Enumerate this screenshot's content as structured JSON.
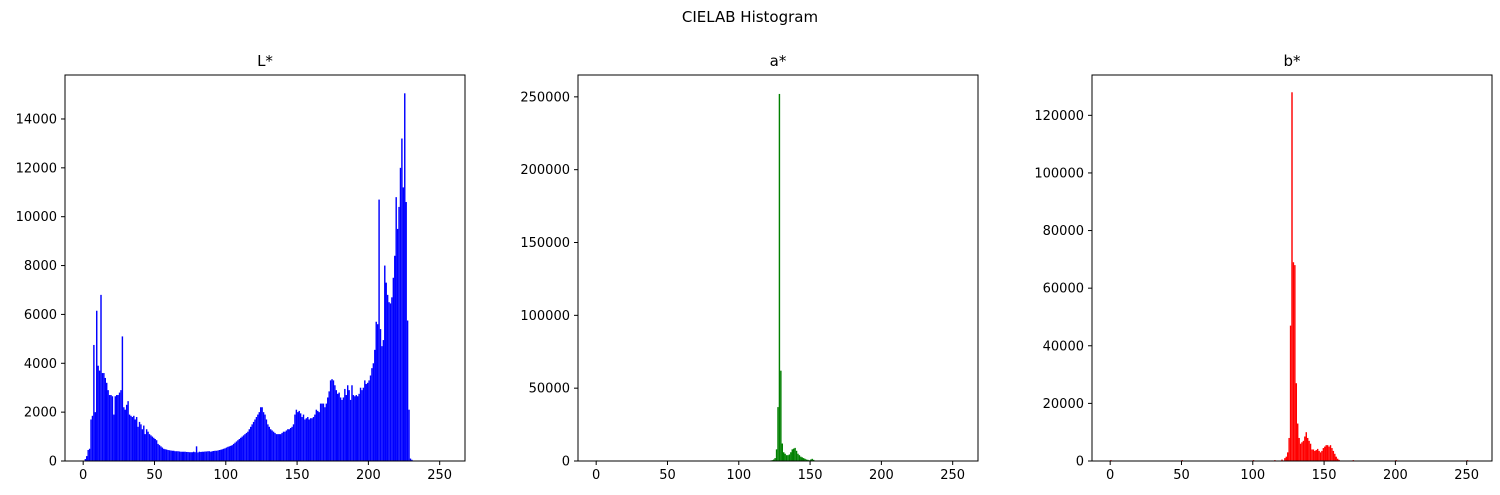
{
  "figure": {
    "title": "CIELAB Histogram"
  },
  "chart_data": [
    {
      "type": "bar",
      "title": "L*",
      "color": "#0000ff",
      "xlim": [
        -12.75,
        267.75
      ],
      "ylim": [
        0,
        15800
      ],
      "xticks": [
        0,
        50,
        100,
        150,
        200,
        250
      ],
      "yticks": [
        0,
        2000,
        4000,
        6000,
        8000,
        10000,
        12000,
        14000
      ],
      "bins": [
        [
          1,
          80
        ],
        [
          2,
          200
        ],
        [
          3,
          450
        ],
        [
          4,
          500
        ],
        [
          5,
          1700
        ],
        [
          6,
          1850
        ],
        [
          7,
          4750
        ],
        [
          8,
          2000
        ],
        [
          9,
          6150
        ],
        [
          10,
          3900
        ],
        [
          11,
          3700
        ],
        [
          12,
          6800
        ],
        [
          13,
          3600
        ],
        [
          14,
          3600
        ],
        [
          15,
          3400
        ],
        [
          16,
          3200
        ],
        [
          17,
          2900
        ],
        [
          18,
          2700
        ],
        [
          19,
          2700
        ],
        [
          20,
          2650
        ],
        [
          21,
          1900
        ],
        [
          22,
          2650
        ],
        [
          23,
          2700
        ],
        [
          24,
          2700
        ],
        [
          25,
          2800
        ],
        [
          26,
          2900
        ],
        [
          27,
          5100
        ],
        [
          28,
          2200
        ],
        [
          29,
          2100
        ],
        [
          30,
          2300
        ],
        [
          31,
          2450
        ],
        [
          32,
          1900
        ],
        [
          33,
          1850
        ],
        [
          34,
          1800
        ],
        [
          35,
          1850
        ],
        [
          36,
          1700
        ],
        [
          37,
          1800
        ],
        [
          38,
          1400
        ],
        [
          39,
          1600
        ],
        [
          40,
          1500
        ],
        [
          41,
          1300
        ],
        [
          42,
          1450
        ],
        [
          43,
          1100
        ],
        [
          44,
          1300
        ],
        [
          45,
          1200
        ],
        [
          46,
          1100
        ],
        [
          47,
          1050
        ],
        [
          48,
          1000
        ],
        [
          49,
          950
        ],
        [
          50,
          900
        ],
        [
          51,
          850
        ],
        [
          52,
          700
        ],
        [
          53,
          650
        ],
        [
          54,
          600
        ],
        [
          55,
          550
        ],
        [
          56,
          500
        ],
        [
          57,
          480
        ],
        [
          58,
          470
        ],
        [
          59,
          450
        ],
        [
          60,
          440
        ],
        [
          61,
          430
        ],
        [
          62,
          420
        ],
        [
          63,
          420
        ],
        [
          64,
          400
        ],
        [
          65,
          400
        ],
        [
          66,
          400
        ],
        [
          67,
          390
        ],
        [
          68,
          380
        ],
        [
          69,
          380
        ],
        [
          70,
          380
        ],
        [
          71,
          380
        ],
        [
          72,
          370
        ],
        [
          73,
          370
        ],
        [
          74,
          360
        ],
        [
          75,
          360
        ],
        [
          76,
          360
        ],
        [
          77,
          380
        ],
        [
          78,
          360
        ],
        [
          79,
          600
        ],
        [
          80,
          350
        ],
        [
          81,
          380
        ],
        [
          82,
          370
        ],
        [
          83,
          380
        ],
        [
          84,
          380
        ],
        [
          85,
          390
        ],
        [
          86,
          390
        ],
        [
          87,
          400
        ],
        [
          88,
          400
        ],
        [
          89,
          380
        ],
        [
          90,
          400
        ],
        [
          91,
          410
        ],
        [
          92,
          420
        ],
        [
          93,
          420
        ],
        [
          94,
          430
        ],
        [
          95,
          450
        ],
        [
          96,
          460
        ],
        [
          97,
          480
        ],
        [
          98,
          500
        ],
        [
          99,
          520
        ],
        [
          100,
          550
        ],
        [
          101,
          580
        ],
        [
          102,
          600
        ],
        [
          103,
          620
        ],
        [
          104,
          650
        ],
        [
          105,
          700
        ],
        [
          106,
          750
        ],
        [
          107,
          800
        ],
        [
          108,
          850
        ],
        [
          109,
          900
        ],
        [
          110,
          950
        ],
        [
          111,
          1000
        ],
        [
          112,
          1050
        ],
        [
          113,
          1100
        ],
        [
          114,
          1150
        ],
        [
          115,
          1200
        ],
        [
          116,
          1300
        ],
        [
          117,
          1400
        ],
        [
          118,
          1500
        ],
        [
          119,
          1600
        ],
        [
          120,
          1700
        ],
        [
          121,
          1800
        ],
        [
          122,
          1900
        ],
        [
          123,
          2000
        ],
        [
          124,
          2200
        ],
        [
          125,
          2200
        ],
        [
          126,
          2000
        ],
        [
          127,
          1900
        ],
        [
          128,
          1700
        ],
        [
          129,
          1500
        ],
        [
          130,
          1400
        ],
        [
          131,
          1300
        ],
        [
          132,
          1250
        ],
        [
          133,
          1200
        ],
        [
          134,
          1150
        ],
        [
          135,
          1100
        ],
        [
          136,
          1100
        ],
        [
          137,
          1100
        ],
        [
          138,
          1100
        ],
        [
          139,
          1150
        ],
        [
          140,
          1200
        ],
        [
          141,
          1200
        ],
        [
          142,
          1250
        ],
        [
          143,
          1300
        ],
        [
          144,
          1300
        ],
        [
          145,
          1350
        ],
        [
          146,
          1400
        ],
        [
          147,
          1500
        ],
        [
          148,
          1900
        ],
        [
          149,
          2100
        ],
        [
          150,
          2000
        ],
        [
          151,
          2050
        ],
        [
          152,
          1950
        ],
        [
          153,
          1800
        ],
        [
          154,
          1900
        ],
        [
          155,
          1700
        ],
        [
          156,
          1750
        ],
        [
          157,
          1800
        ],
        [
          158,
          1700
        ],
        [
          159,
          1750
        ],
        [
          160,
          1750
        ],
        [
          161,
          1800
        ],
        [
          162,
          1900
        ],
        [
          163,
          2100
        ],
        [
          164,
          2050
        ],
        [
          165,
          2000
        ],
        [
          166,
          2350
        ],
        [
          167,
          2350
        ],
        [
          168,
          2350
        ],
        [
          169,
          2200
        ],
        [
          170,
          2350
        ],
        [
          171,
          2600
        ],
        [
          172,
          2850
        ],
        [
          173,
          3300
        ],
        [
          174,
          3350
        ],
        [
          175,
          3300
        ],
        [
          176,
          3100
        ],
        [
          177,
          2900
        ],
        [
          178,
          2750
        ],
        [
          179,
          2800
        ],
        [
          180,
          2600
        ],
        [
          181,
          2500
        ],
        [
          182,
          2600
        ],
        [
          183,
          2950
        ],
        [
          184,
          2700
        ],
        [
          185,
          3100
        ],
        [
          186,
          2900
        ],
        [
          187,
          2500
        ],
        [
          188,
          3100
        ],
        [
          189,
          2700
        ],
        [
          190,
          2650
        ],
        [
          191,
          2700
        ],
        [
          192,
          2650
        ],
        [
          193,
          2750
        ],
        [
          194,
          3000
        ],
        [
          195,
          2900
        ],
        [
          196,
          3000
        ],
        [
          197,
          3300
        ],
        [
          198,
          3150
        ],
        [
          199,
          3200
        ],
        [
          200,
          3300
        ],
        [
          201,
          3500
        ],
        [
          202,
          3800
        ],
        [
          203,
          4000
        ],
        [
          204,
          4550
        ],
        [
          205,
          5700
        ],
        [
          206,
          5600
        ],
        [
          207,
          10700
        ],
        [
          208,
          5400
        ],
        [
          209,
          4700
        ],
        [
          210,
          4950
        ],
        [
          211,
          8000
        ],
        [
          212,
          7300
        ],
        [
          213,
          6800
        ],
        [
          214,
          6500
        ],
        [
          215,
          6450
        ],
        [
          216,
          6700
        ],
        [
          217,
          7500
        ],
        [
          218,
          8400
        ],
        [
          219,
          10800
        ],
        [
          220,
          9500
        ],
        [
          221,
          10400
        ],
        [
          222,
          12000
        ],
        [
          223,
          13200
        ],
        [
          224,
          11200
        ],
        [
          225,
          15050
        ],
        [
          226,
          10600
        ],
        [
          227,
          5750
        ],
        [
          228,
          2100
        ],
        [
          229,
          100
        ],
        [
          230,
          50
        ]
      ]
    },
    {
      "type": "bar",
      "title": "a*",
      "color": "#008000",
      "xlim": [
        -12.75,
        267.75
      ],
      "ylim": [
        0,
        265000
      ],
      "xticks": [
        0,
        50,
        100,
        150,
        200,
        250
      ],
      "yticks": [
        0,
        50000,
        100000,
        150000,
        200000,
        250000
      ],
      "bins": [
        [
          0,
          400
        ],
        [
          50,
          300
        ],
        [
          100,
          300
        ],
        [
          120,
          300
        ],
        [
          122,
          400
        ],
        [
          123,
          600
        ],
        [
          124,
          1000
        ],
        [
          125,
          2000
        ],
        [
          126,
          8000
        ],
        [
          127,
          37000
        ],
        [
          128,
          252000
        ],
        [
          129,
          62000
        ],
        [
          130,
          12000
        ],
        [
          131,
          6000
        ],
        [
          132,
          5000
        ],
        [
          133,
          4000
        ],
        [
          134,
          4000
        ],
        [
          135,
          4500
        ],
        [
          136,
          6000
        ],
        [
          137,
          8000
        ],
        [
          138,
          8500
        ],
        [
          139,
          9000
        ],
        [
          140,
          7000
        ],
        [
          141,
          5000
        ],
        [
          142,
          4000
        ],
        [
          143,
          3000
        ],
        [
          144,
          2500
        ],
        [
          145,
          2000
        ],
        [
          146,
          1500
        ],
        [
          147,
          1000
        ],
        [
          148,
          800
        ],
        [
          149,
          500
        ],
        [
          150,
          1000
        ],
        [
          151,
          1500
        ],
        [
          152,
          800
        ],
        [
          153,
          300
        ],
        [
          160,
          200
        ],
        [
          200,
          200
        ],
        [
          250,
          200
        ]
      ]
    },
    {
      "type": "bar",
      "title": "b*",
      "color": "#ff0000",
      "xlim": [
        -12.75,
        267.75
      ],
      "ylim": [
        0,
        134000
      ],
      "xticks": [
        0,
        50,
        100,
        150,
        200,
        250
      ],
      "yticks": [
        0,
        20000,
        40000,
        60000,
        80000,
        100000,
        120000
      ],
      "bins": [
        [
          0,
          300
        ],
        [
          50,
          300
        ],
        [
          100,
          300
        ],
        [
          115,
          300
        ],
        [
          120,
          500
        ],
        [
          122,
          1000
        ],
        [
          123,
          1500
        ],
        [
          124,
          3000
        ],
        [
          125,
          8000
        ],
        [
          126,
          47000
        ],
        [
          127,
          128000
        ],
        [
          128,
          69000
        ],
        [
          129,
          68000
        ],
        [
          130,
          27000
        ],
        [
          131,
          13000
        ],
        [
          132,
          8000
        ],
        [
          133,
          6000
        ],
        [
          134,
          6500
        ],
        [
          135,
          7000
        ],
        [
          136,
          8500
        ],
        [
          137,
          10000
        ],
        [
          138,
          8000
        ],
        [
          139,
          7000
        ],
        [
          140,
          6000
        ],
        [
          141,
          4000
        ],
        [
          142,
          4000
        ],
        [
          143,
          3500
        ],
        [
          144,
          3800
        ],
        [
          145,
          4200
        ],
        [
          146,
          3500
        ],
        [
          147,
          3000
        ],
        [
          148,
          3500
        ],
        [
          149,
          4500
        ],
        [
          150,
          5000
        ],
        [
          151,
          5500
        ],
        [
          152,
          5500
        ],
        [
          153,
          5000
        ],
        [
          154,
          5500
        ],
        [
          155,
          4500
        ],
        [
          156,
          3500
        ],
        [
          157,
          2500
        ],
        [
          158,
          1500
        ],
        [
          159,
          800
        ],
        [
          160,
          400
        ],
        [
          170,
          300
        ],
        [
          200,
          300
        ],
        [
          250,
          300
        ]
      ]
    }
  ]
}
